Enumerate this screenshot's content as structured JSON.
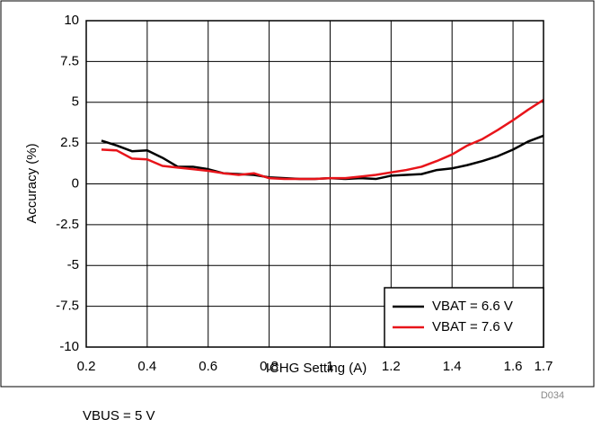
{
  "chart_data": {
    "type": "line",
    "x_label": "ICHG Setting (A)",
    "y_label": "Accuracy (%)",
    "code": "D034",
    "note": "VBUS = 5 V",
    "x": [
      0.25,
      0.3,
      0.35,
      0.4,
      0.45,
      0.5,
      0.55,
      0.6,
      0.65,
      0.7,
      0.75,
      0.8,
      0.85,
      0.9,
      0.95,
      1.0,
      1.05,
      1.1,
      1.15,
      1.2,
      1.25,
      1.3,
      1.35,
      1.4,
      1.45,
      1.5,
      1.55,
      1.6,
      1.65,
      1.7
    ],
    "series": [
      {
        "name": "VBAT = 6.6 V",
        "color": "#000000",
        "values": [
          2.65,
          2.35,
          2.0,
          2.05,
          1.6,
          1.05,
          1.05,
          0.9,
          0.65,
          0.6,
          0.55,
          0.4,
          0.35,
          0.3,
          0.3,
          0.35,
          0.3,
          0.35,
          0.3,
          0.5,
          0.55,
          0.6,
          0.85,
          0.95,
          1.15,
          1.4,
          1.7,
          2.1,
          2.6,
          2.95
        ]
      },
      {
        "name": "VBAT = 7.6 V",
        "color": "#e8141a",
        "values": [
          2.1,
          2.05,
          1.55,
          1.5,
          1.1,
          1.0,
          0.9,
          0.8,
          0.65,
          0.55,
          0.65,
          0.35,
          0.3,
          0.3,
          0.3,
          0.35,
          0.35,
          0.45,
          0.55,
          0.7,
          0.85,
          1.05,
          1.4,
          1.8,
          2.35,
          2.75,
          3.3,
          3.9,
          4.55,
          5.15
        ]
      }
    ],
    "xlim": [
      0.2,
      1.7
    ],
    "xticks": [
      0.2,
      0.4,
      0.6,
      0.8,
      1,
      1.2,
      1.4,
      1.6,
      1.7
    ],
    "ylim": [
      -10,
      10
    ],
    "yticks": [
      -10,
      -7.5,
      -5,
      -2.5,
      0,
      2.5,
      5,
      7.5,
      10
    ],
    "grid": true,
    "legend": "lower-right"
  }
}
